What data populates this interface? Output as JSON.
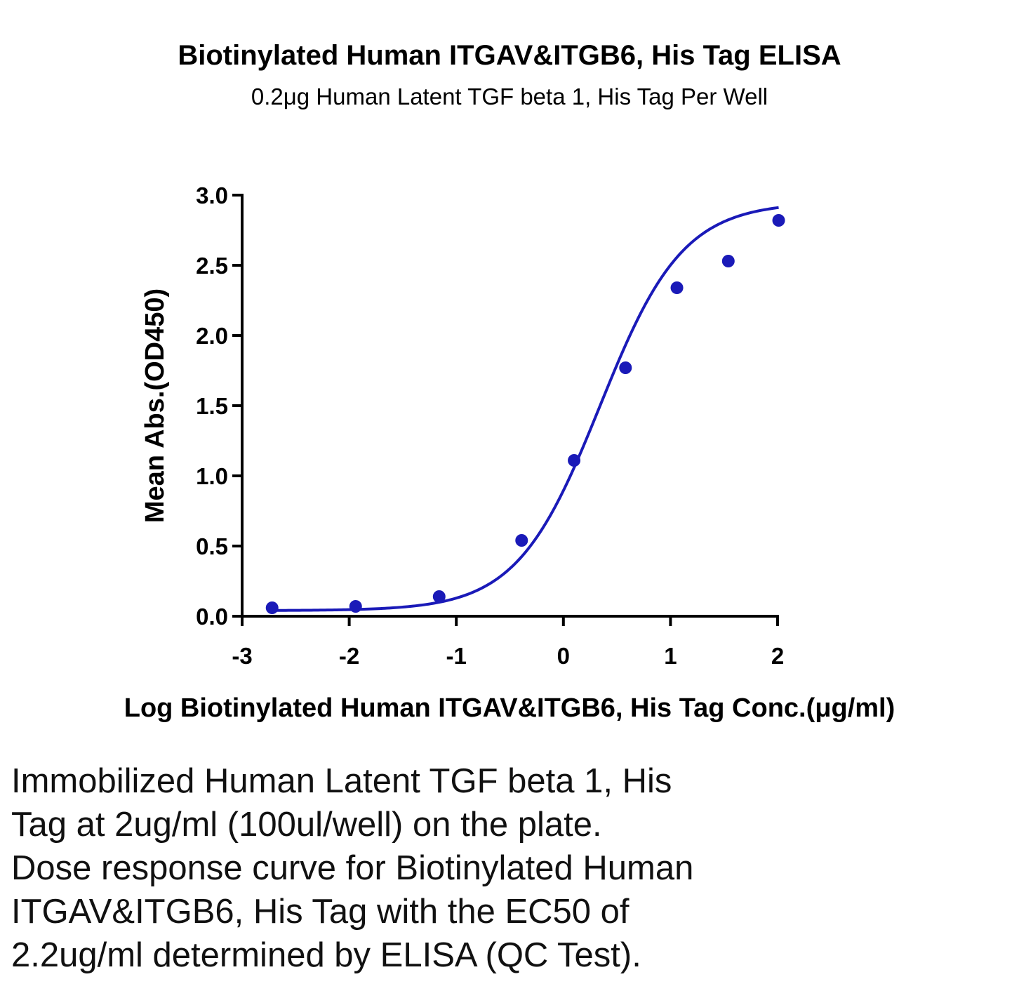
{
  "chart_data": {
    "type": "scatter",
    "title": "Biotinylated Human ITGAV&ITGB6, His Tag ELISA",
    "subtitle": "0.2μg Human Latent TGF beta 1, His Tag Per Well",
    "xlabel": "Log Biotinylated Human ITGAV&ITGB6, His Tag Conc.(μg/ml)",
    "ylabel": "Mean Abs.(OD450)",
    "xlim": [
      -3,
      2
    ],
    "ylim": [
      0,
      3
    ],
    "xticks": [
      "-3",
      "-2",
      "-1",
      "0",
      "1",
      "2"
    ],
    "yticks": [
      "0.0",
      "0.5",
      "1.0",
      "1.5",
      "2.0",
      "2.5",
      "3.0"
    ],
    "grid": false,
    "series": [
      {
        "color": "#1a1ab8",
        "x": [
          -2.72,
          -1.94,
          -1.16,
          -0.39,
          0.1,
          0.58,
          1.06,
          1.54,
          2.01
        ],
        "y": [
          0.06,
          0.07,
          0.14,
          0.54,
          1.11,
          1.77,
          2.34,
          2.53,
          2.82
        ]
      }
    ],
    "fit_curve": {
      "model": "4PL",
      "bottom": 0.04,
      "top": 2.95,
      "logEC50": 0.34,
      "hill": 1.12,
      "color": "#1a1ab8"
    }
  },
  "caption_lines": [
    "Immobilized Human Latent TGF beta 1, His",
    "Tag at 2ug/ml (100ul/well) on the plate.",
    "Dose response curve for Biotinylated Human",
    "ITGAV&ITGB6, His Tag with the EC50 of",
    "2.2ug/ml determined by ELISA (QC Test)."
  ]
}
